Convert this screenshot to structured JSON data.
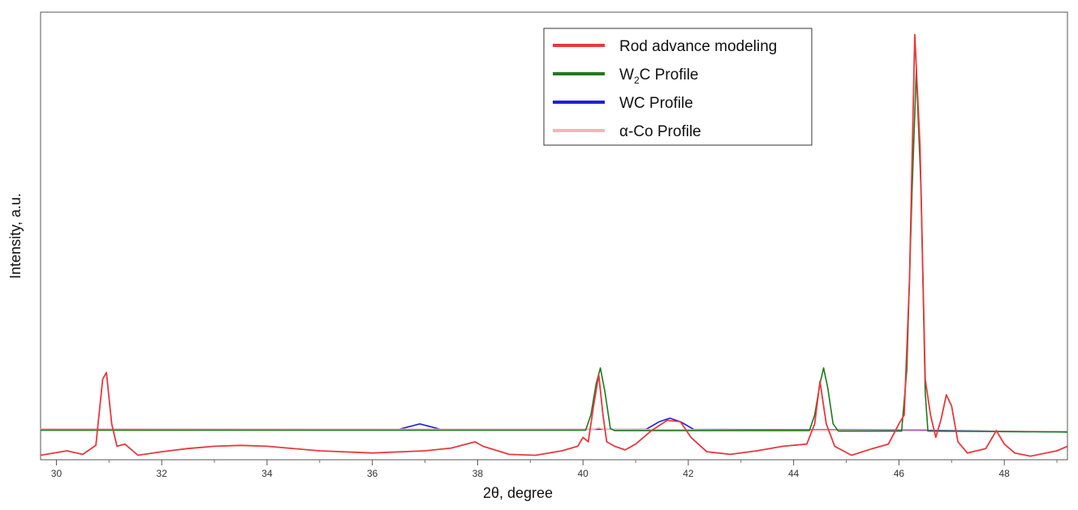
{
  "chart_data": {
    "type": "line",
    "title": "",
    "xlabel": "2θ, degree",
    "ylabel": "Intensity, a.u.",
    "xlim": [
      29.7,
      49.2
    ],
    "ylim": [
      0,
      100
    ],
    "x_ticks": [
      30,
      32,
      34,
      36,
      38,
      40,
      42,
      44,
      46,
      48
    ],
    "y_ticks_shown": false,
    "grid": false,
    "legend_position": "top-right",
    "series": [
      {
        "name": "Rod advance modeling",
        "legend_label": "Rod advance modeling",
        "color": "#e8383d",
        "points": [
          [
            29.7,
            1.0
          ],
          [
            30.2,
            2.0
          ],
          [
            30.5,
            1.2
          ],
          [
            30.75,
            3.2
          ],
          [
            30.88,
            18.0
          ],
          [
            30.95,
            19.5
          ],
          [
            31.05,
            8.0
          ],
          [
            31.15,
            3.0
          ],
          [
            31.3,
            3.5
          ],
          [
            31.55,
            1.0
          ],
          [
            32.0,
            1.8
          ],
          [
            32.5,
            2.5
          ],
          [
            33.0,
            3.0
          ],
          [
            33.5,
            3.2
          ],
          [
            34.0,
            3.0
          ],
          [
            35.0,
            2.0
          ],
          [
            36.0,
            1.5
          ],
          [
            37.0,
            2.0
          ],
          [
            37.5,
            2.6
          ],
          [
            37.95,
            4.0
          ],
          [
            38.1,
            3.0
          ],
          [
            38.6,
            1.2
          ],
          [
            39.1,
            1.0
          ],
          [
            39.6,
            2.0
          ],
          [
            39.9,
            3.0
          ],
          [
            40.0,
            5.0
          ],
          [
            40.1,
            4.0
          ],
          [
            40.2,
            12.0
          ],
          [
            40.3,
            19.0
          ],
          [
            40.38,
            10.0
          ],
          [
            40.45,
            4.0
          ],
          [
            40.6,
            3.0
          ],
          [
            40.8,
            2.2
          ],
          [
            41.0,
            3.5
          ],
          [
            41.3,
            6.5
          ],
          [
            41.6,
            8.8
          ],
          [
            41.85,
            8.5
          ],
          [
            42.05,
            5.0
          ],
          [
            42.35,
            1.8
          ],
          [
            42.8,
            1.2
          ],
          [
            43.3,
            2.0
          ],
          [
            43.8,
            3.0
          ],
          [
            44.25,
            3.5
          ],
          [
            44.4,
            8.0
          ],
          [
            44.5,
            17.5
          ],
          [
            44.62,
            8.0
          ],
          [
            44.78,
            3.0
          ],
          [
            45.1,
            1.0
          ],
          [
            45.5,
            2.5
          ],
          [
            45.8,
            3.5
          ],
          [
            46.0,
            8.0
          ],
          [
            46.1,
            10.0
          ],
          [
            46.2,
            40.0
          ],
          [
            46.3,
            95.0
          ],
          [
            46.4,
            70.0
          ],
          [
            46.5,
            18.0
          ],
          [
            46.6,
            10.0
          ],
          [
            46.7,
            5.0
          ],
          [
            46.8,
            9.0
          ],
          [
            46.9,
            14.5
          ],
          [
            47.0,
            12.0
          ],
          [
            47.12,
            4.0
          ],
          [
            47.3,
            1.5
          ],
          [
            47.65,
            2.5
          ],
          [
            47.85,
            6.5
          ],
          [
            48.0,
            3.5
          ],
          [
            48.2,
            1.5
          ],
          [
            48.5,
            0.8
          ],
          [
            49.0,
            2.0
          ],
          [
            49.2,
            3.0
          ]
        ]
      },
      {
        "name": "W2C Profile",
        "legend_label": "W",
        "legend_sub": "2",
        "legend_suffix": "C Profile",
        "color": "#1e7a1e",
        "points": [
          [
            29.7,
            6.6
          ],
          [
            40.05,
            6.6
          ],
          [
            40.15,
            10.0
          ],
          [
            40.25,
            17.0
          ],
          [
            40.33,
            20.5
          ],
          [
            40.42,
            15.0
          ],
          [
            40.52,
            7.0
          ],
          [
            40.6,
            6.5
          ],
          [
            44.3,
            6.5
          ],
          [
            44.4,
            10.0
          ],
          [
            44.5,
            17.0
          ],
          [
            44.57,
            20.5
          ],
          [
            44.65,
            16.0
          ],
          [
            44.75,
            8.0
          ],
          [
            44.85,
            6.4
          ],
          [
            46.05,
            6.4
          ],
          [
            46.15,
            20.0
          ],
          [
            46.25,
            60.0
          ],
          [
            46.33,
            87.0
          ],
          [
            46.42,
            60.0
          ],
          [
            46.5,
            15.0
          ],
          [
            46.55,
            6.4
          ],
          [
            49.2,
            6.2
          ]
        ]
      },
      {
        "name": "WC Profile",
        "legend_label": "WC Profile",
        "color": "#1c22d6",
        "points": [
          [
            29.7,
            6.8
          ],
          [
            36.5,
            6.8
          ],
          [
            36.7,
            7.4
          ],
          [
            36.9,
            8.0
          ],
          [
            37.1,
            7.4
          ],
          [
            37.3,
            6.8
          ],
          [
            41.2,
            6.8
          ],
          [
            41.45,
            8.5
          ],
          [
            41.65,
            9.3
          ],
          [
            41.85,
            8.5
          ],
          [
            42.1,
            6.8
          ],
          [
            46.5,
            6.6
          ],
          [
            49.2,
            6.2
          ]
        ]
      },
      {
        "name": "α-Co Profile",
        "legend_label": "α-Co Profile",
        "color": "#f7b4b8",
        "points": [
          [
            29.7,
            6.9
          ],
          [
            40.2,
            6.8
          ],
          [
            40.3,
            7.1
          ],
          [
            40.4,
            6.8
          ],
          [
            49.2,
            6.3
          ]
        ]
      }
    ]
  }
}
